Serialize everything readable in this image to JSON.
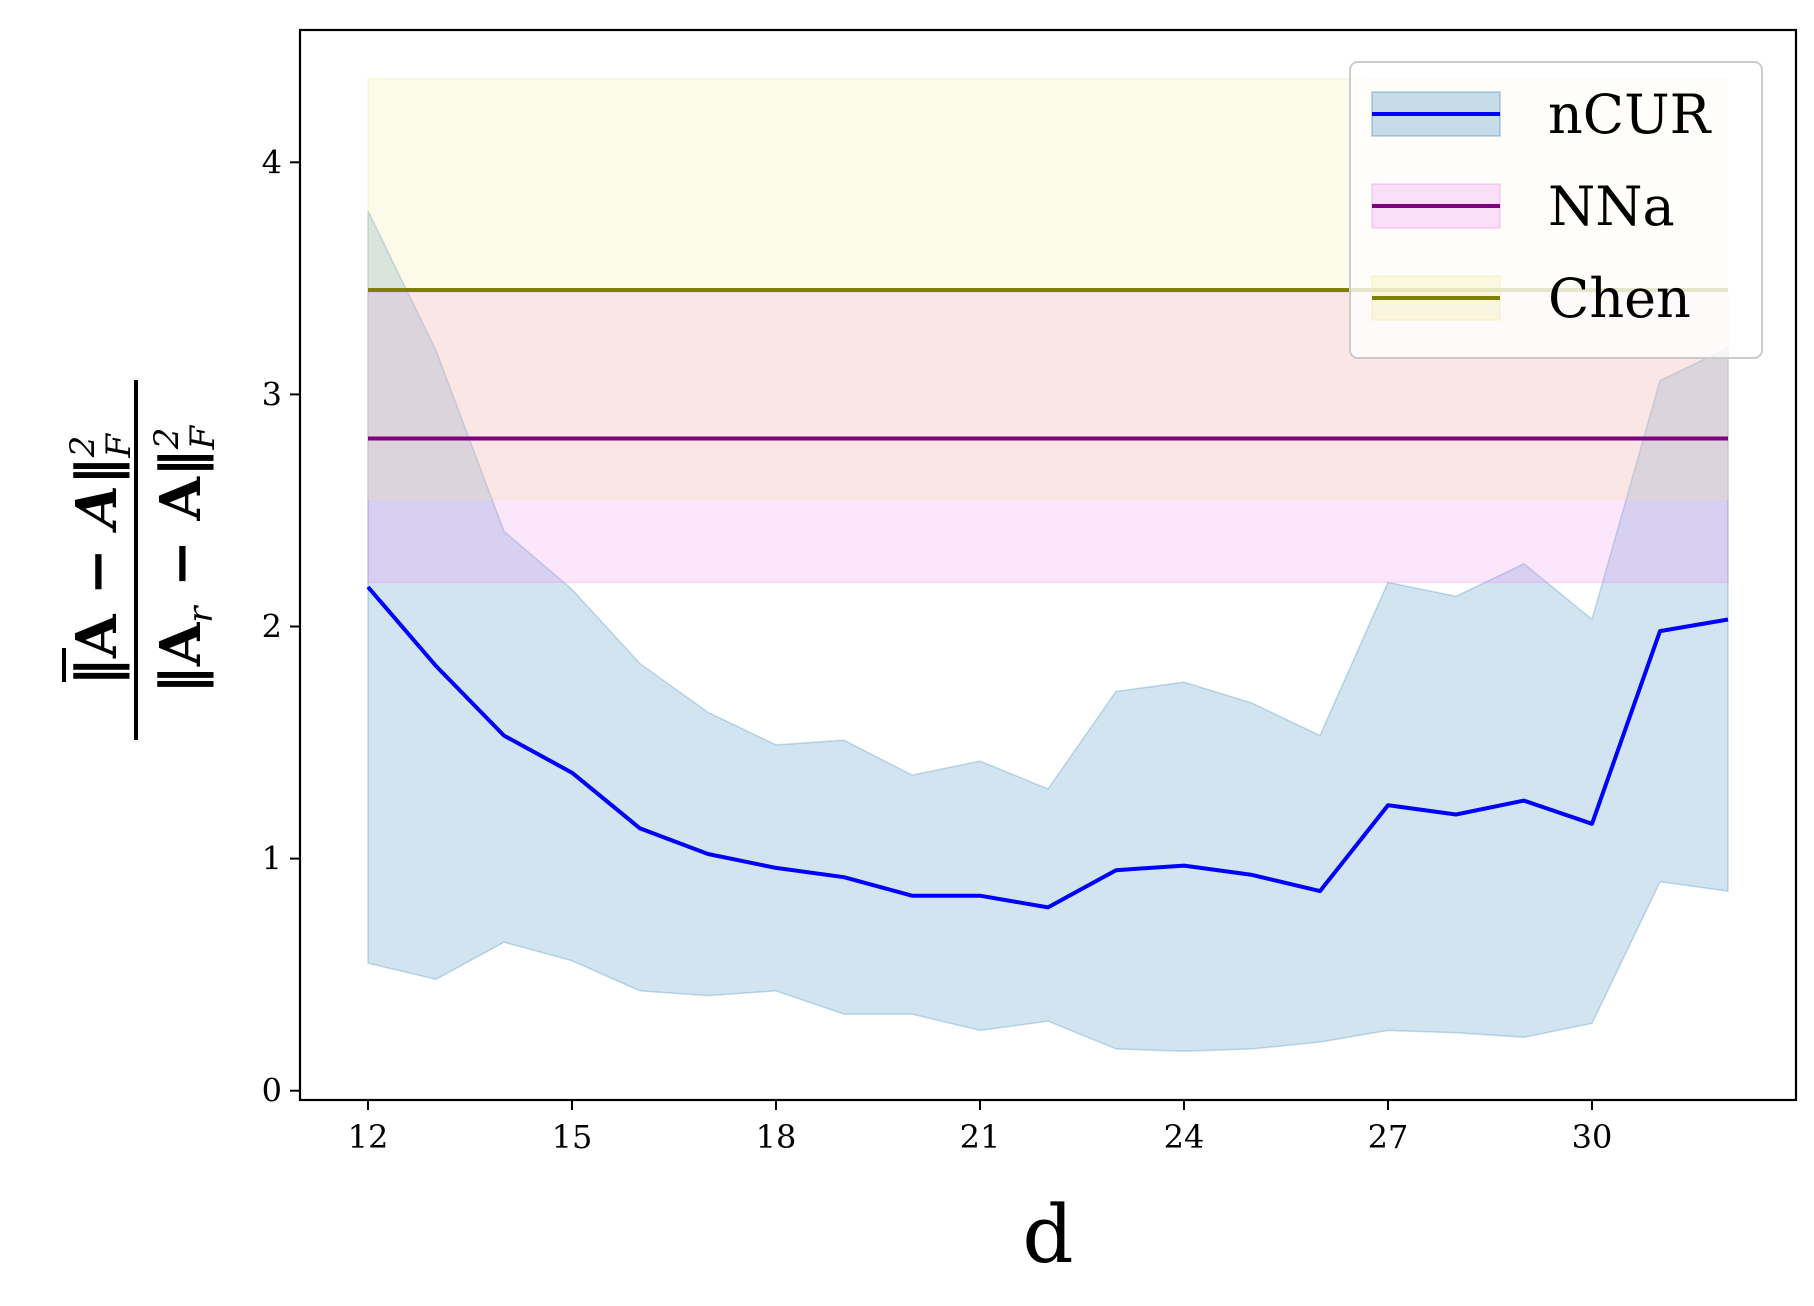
{
  "chart_data": {
    "type": "line",
    "xlabel": "d",
    "ylabel": {
      "numerator": "‖A̅ − A‖²_F",
      "denominator": "‖A_r − A‖²_F"
    },
    "xlim": [
      11,
      33
    ],
    "ylim": [
      -0.04,
      4.57
    ],
    "xticks": [
      12,
      15,
      18,
      21,
      24,
      27,
      30
    ],
    "yticks": [
      0,
      1,
      2,
      3,
      4
    ],
    "legend_position": "top-right",
    "grid": false,
    "x": [
      12,
      13,
      14,
      15,
      16,
      17,
      18,
      19,
      20,
      21,
      22,
      23,
      24,
      25,
      26,
      27,
      28,
      29,
      30,
      31,
      32
    ],
    "series": [
      {
        "name": "nCUR",
        "color": "#0000ff",
        "band_color": "#1f77b4",
        "values": [
          2.17,
          1.83,
          1.53,
          1.37,
          1.13,
          1.02,
          0.96,
          0.92,
          0.84,
          0.84,
          0.79,
          0.95,
          0.97,
          0.93,
          0.86,
          1.23,
          1.19,
          1.25,
          1.15,
          1.98,
          2.03
        ],
        "band_upper": [
          3.79,
          3.19,
          2.41,
          2.16,
          1.84,
          1.63,
          1.49,
          1.51,
          1.36,
          1.42,
          1.3,
          1.72,
          1.76,
          1.67,
          1.53,
          2.19,
          2.13,
          2.27,
          2.03,
          3.06,
          3.2
        ],
        "band_lower": [
          0.55,
          0.48,
          0.64,
          0.56,
          0.43,
          0.41,
          0.43,
          0.33,
          0.33,
          0.26,
          0.3,
          0.18,
          0.17,
          0.18,
          0.21,
          0.26,
          0.25,
          0.23,
          0.29,
          0.9,
          0.86
        ]
      },
      {
        "name": "NNa",
        "color": "#800080",
        "band_color": "#ee82ee",
        "values": [
          2.81,
          2.81,
          2.81,
          2.81,
          2.81,
          2.81,
          2.81,
          2.81,
          2.81,
          2.81,
          2.81,
          2.81,
          2.81,
          2.81,
          2.81,
          2.81,
          2.81,
          2.81,
          2.81,
          2.81,
          2.81
        ],
        "band_upper": [
          3.44,
          3.44,
          3.44,
          3.44,
          3.44,
          3.44,
          3.44,
          3.44,
          3.44,
          3.44,
          3.44,
          3.44,
          3.44,
          3.44,
          3.44,
          3.44,
          3.44,
          3.44,
          3.44,
          3.44,
          3.44
        ],
        "band_lower": [
          2.19,
          2.19,
          2.19,
          2.19,
          2.19,
          2.19,
          2.19,
          2.19,
          2.19,
          2.19,
          2.19,
          2.19,
          2.19,
          2.19,
          2.19,
          2.19,
          2.19,
          2.19,
          2.19,
          2.19,
          2.19
        ]
      },
      {
        "name": "Chen",
        "color": "#808000",
        "band_color": "#f0e68c",
        "values": [
          3.45,
          3.45,
          3.45,
          3.45,
          3.45,
          3.45,
          3.45,
          3.45,
          3.45,
          3.45,
          3.45,
          3.45,
          3.45,
          3.45,
          3.45,
          3.45,
          3.45,
          3.45,
          3.45,
          3.45,
          3.45
        ],
        "band_upper": [
          4.36,
          4.36,
          4.36,
          4.36,
          4.36,
          4.36,
          4.36,
          4.36,
          4.36,
          4.36,
          4.36,
          4.36,
          4.36,
          4.36,
          4.36,
          4.36,
          4.36,
          4.36,
          4.36,
          4.36,
          4.36
        ],
        "band_lower": [
          2.55,
          2.55,
          2.55,
          2.55,
          2.55,
          2.55,
          2.55,
          2.55,
          2.55,
          2.55,
          2.55,
          2.55,
          2.55,
          2.55,
          2.55,
          2.55,
          2.55,
          2.55,
          2.55,
          2.55,
          2.55
        ]
      }
    ]
  }
}
